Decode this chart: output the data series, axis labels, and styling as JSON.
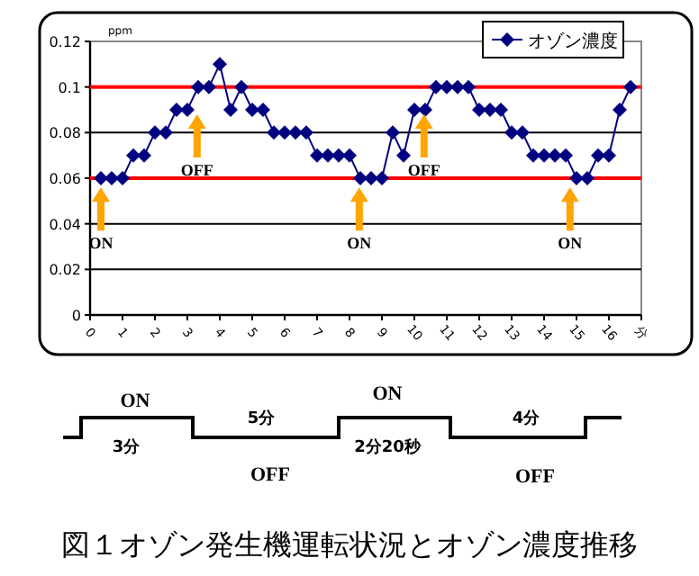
{
  "chart_data": {
    "type": "line",
    "title": "図１オゾン発生機運転状況とオゾン濃度推移",
    "ylabel": "ppm",
    "x": [
      0.333,
      0.667,
      1,
      1.333,
      1.667,
      2,
      2.333,
      2.667,
      3,
      3.333,
      3.667,
      4,
      4.333,
      4.667,
      5,
      5.333,
      5.667,
      6,
      6.333,
      6.667,
      7,
      7.333,
      7.667,
      8,
      8.333,
      8.667,
      9,
      9.333,
      9.667,
      10,
      10.333,
      10.667,
      11,
      11.333,
      11.667,
      12,
      12.333,
      12.667,
      13,
      13.333,
      13.667,
      14,
      14.333,
      14.667,
      15,
      15.333,
      15.667,
      16,
      16.333,
      16.667
    ],
    "series": [
      {
        "name": "オゾン濃度",
        "color": "#000080",
        "values": [
          0.06,
          0.06,
          0.06,
          0.07,
          0.07,
          0.08,
          0.08,
          0.09,
          0.09,
          0.1,
          0.1,
          0.11,
          0.09,
          0.1,
          0.09,
          0.09,
          0.08,
          0.08,
          0.08,
          0.08,
          0.07,
          0.07,
          0.07,
          0.07,
          0.06,
          0.06,
          0.06,
          0.08,
          0.07,
          0.09,
          0.09,
          0.1,
          0.1,
          0.1,
          0.1,
          0.09,
          0.09,
          0.09,
          0.08,
          0.08,
          0.07,
          0.07,
          0.07,
          0.07,
          0.06,
          0.06,
          0.07,
          0.07,
          0.09,
          0.1
        ]
      }
    ],
    "xlim": [
      0,
      17
    ],
    "xticks": [
      0,
      1,
      2,
      3,
      4,
      5,
      6,
      7,
      8,
      9,
      10,
      11,
      12,
      13,
      14,
      15,
      16,
      {
        "value": 17,
        "label": "分"
      }
    ],
    "ylim": [
      0,
      0.12
    ],
    "yticks": [
      0,
      0.02,
      0.04,
      0.06,
      0.08,
      0.1,
      0.12
    ],
    "grid": "y",
    "legend": "top right",
    "marker": "diamond",
    "line_style": "solid",
    "ref_lines": [
      {
        "axis": "y",
        "value": 0.06,
        "color": "#ff0000"
      },
      {
        "axis": "y",
        "value": 0.1,
        "color": "#ff0000"
      }
    ],
    "annotations": [
      {
        "text": "ON",
        "x": 0.333,
        "y": 0.056
      },
      {
        "text": "OFF",
        "x": 3.3,
        "y": 0.088
      },
      {
        "text": "ON",
        "x": 8.3,
        "y": 0.056
      },
      {
        "text": "OFF",
        "x": 10.3,
        "y": 0.088
      },
      {
        "text": "ON",
        "x": 14.8,
        "y": 0.056
      },
      "ON",
      "3分",
      "5分",
      "OFF",
      "ON",
      "2分20秒",
      "4分",
      "OFF"
    ]
  }
}
